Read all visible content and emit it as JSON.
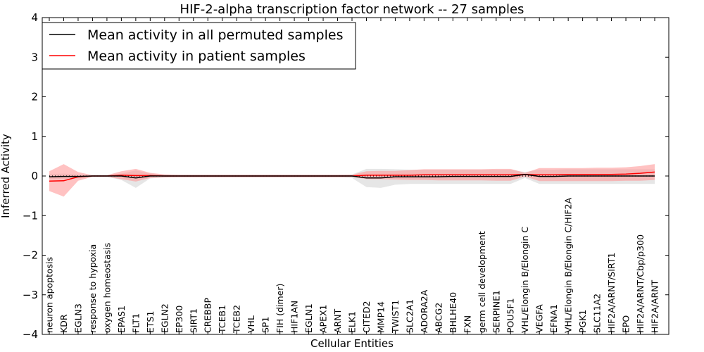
{
  "chart_data": {
    "type": "line",
    "title": "HIF-2-alpha transcription factor network -- 27 samples",
    "xlabel": "Cellular Entities",
    "ylabel": "Inferred Activity",
    "ylim": [
      -4,
      4
    ],
    "yticks": [
      -4,
      -3,
      -2,
      -1,
      0,
      1,
      2,
      3,
      4
    ],
    "legend_position": "top-left",
    "categories": [
      "neuron apoptosis",
      "KDR",
      "EGLN3",
      "response to hypoxia",
      "oxygen homeostasis",
      "EPAS1",
      "FLT1",
      "ETS1",
      "EGLN2",
      "EP300",
      "SIRT1",
      "CREBBP",
      "TCEB1",
      "TCEB2",
      "VHL",
      "SP1",
      "FIH (dimer)",
      "HIF1AN",
      "EGLN1",
      "APEX1",
      "ARNT",
      "ELK1",
      "CITED2",
      "MMP14",
      "TWIST1",
      "SLC2A1",
      "ADORA2A",
      "ABCG2",
      "BHLHE40",
      "FXN",
      "germ cell development",
      "SERPINE1",
      "POU5F1",
      "VHL/Elongin B/Elongin C",
      "VEGFA",
      "EFNA1",
      "VHL/Elongin B/Elongin C/HIF2A",
      "PGK1",
      "SLC11A2",
      "HIF2A/ARNT/SIRT1",
      "EPO",
      "HIF2A/ARNT/Cbp/p300",
      "HIF2A/ARNT"
    ],
    "series": [
      {
        "name": "Mean activity in all permuted samples",
        "color": "#000000",
        "band_color": "#c8c8c8",
        "values": [
          -0.02,
          -0.01,
          -0.01,
          0.0,
          0.0,
          0.0,
          -0.05,
          0.0,
          0.0,
          0.0,
          0.0,
          0.0,
          0.0,
          0.0,
          0.0,
          0.0,
          0.0,
          0.0,
          0.0,
          0.0,
          0.0,
          0.0,
          -0.05,
          -0.05,
          -0.02,
          -0.02,
          -0.02,
          -0.02,
          -0.01,
          -0.01,
          -0.01,
          -0.01,
          -0.01,
          0.04,
          -0.01,
          -0.01,
          0.0,
          0.0,
          0.0,
          0.0,
          0.0,
          0.0,
          0.0
        ],
        "upper": [
          0.05,
          0.06,
          0.04,
          0.02,
          0.02,
          0.06,
          0.14,
          0.06,
          0.04,
          0.03,
          0.03,
          0.03,
          0.03,
          0.03,
          0.03,
          0.03,
          0.03,
          0.03,
          0.03,
          0.03,
          0.03,
          0.04,
          0.18,
          0.18,
          0.17,
          0.16,
          0.16,
          0.16,
          0.16,
          0.16,
          0.16,
          0.16,
          0.16,
          0.1,
          0.16,
          0.16,
          0.17,
          0.17,
          0.17,
          0.17,
          0.17,
          0.17,
          0.17
        ],
        "lower": [
          -0.08,
          -0.08,
          -0.06,
          -0.02,
          -0.02,
          -0.1,
          -0.3,
          -0.06,
          -0.04,
          -0.03,
          -0.03,
          -0.03,
          -0.03,
          -0.03,
          -0.03,
          -0.03,
          -0.03,
          -0.03,
          -0.03,
          -0.03,
          -0.03,
          -0.05,
          -0.28,
          -0.3,
          -0.22,
          -0.2,
          -0.2,
          -0.2,
          -0.2,
          -0.2,
          -0.2,
          -0.2,
          -0.2,
          -0.05,
          -0.2,
          -0.2,
          -0.2,
          -0.2,
          -0.2,
          -0.2,
          -0.2,
          -0.2,
          -0.2
        ]
      },
      {
        "name": "Mean activity in patient samples",
        "color": "#ff0000",
        "band_color": "#ff9090",
        "values": [
          -0.13,
          -0.12,
          -0.02,
          0.0,
          0.0,
          0.02,
          0.01,
          0.01,
          0.0,
          0.0,
          0.0,
          0.0,
          0.0,
          0.0,
          0.0,
          0.0,
          0.0,
          0.0,
          0.0,
          0.0,
          0.0,
          0.0,
          0.02,
          0.02,
          0.02,
          0.02,
          0.03,
          0.03,
          0.03,
          0.03,
          0.03,
          0.03,
          0.03,
          0.04,
          0.03,
          0.03,
          0.04,
          0.04,
          0.04,
          0.04,
          0.05,
          0.07,
          0.1
        ],
        "upper": [
          0.12,
          0.3,
          0.1,
          0.02,
          0.02,
          0.12,
          0.18,
          0.08,
          0.04,
          0.03,
          0.03,
          0.03,
          0.03,
          0.03,
          0.03,
          0.03,
          0.03,
          0.03,
          0.03,
          0.03,
          0.03,
          0.03,
          0.12,
          0.13,
          0.13,
          0.15,
          0.17,
          0.17,
          0.17,
          0.17,
          0.17,
          0.18,
          0.18,
          0.08,
          0.2,
          0.2,
          0.2,
          0.2,
          0.21,
          0.21,
          0.22,
          0.25,
          0.3
        ],
        "lower": [
          -0.38,
          -0.52,
          -0.12,
          -0.02,
          -0.02,
          -0.08,
          -0.14,
          -0.05,
          -0.03,
          -0.03,
          -0.03,
          -0.03,
          -0.03,
          -0.03,
          -0.03,
          -0.03,
          -0.03,
          -0.03,
          -0.03,
          -0.03,
          -0.03,
          -0.02,
          -0.08,
          -0.08,
          -0.09,
          -0.1,
          -0.1,
          -0.11,
          -0.11,
          -0.11,
          -0.11,
          -0.12,
          -0.12,
          -0.01,
          -0.13,
          -0.13,
          -0.13,
          -0.13,
          -0.13,
          -0.13,
          -0.12,
          -0.12,
          -0.1
        ]
      }
    ],
    "reference_line": {
      "style": "dotted",
      "color": "#000000"
    }
  }
}
